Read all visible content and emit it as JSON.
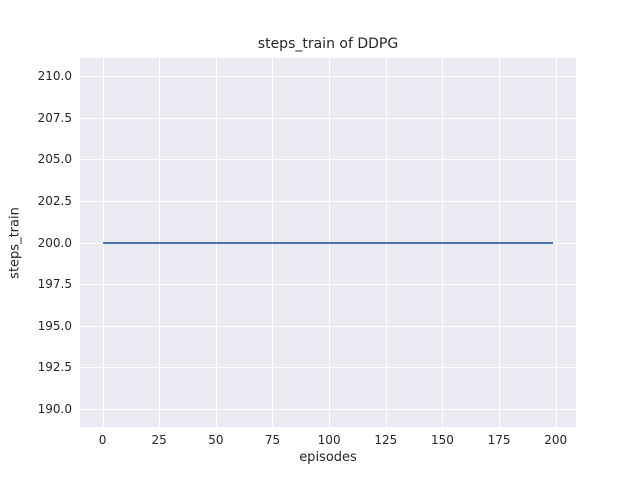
{
  "chart_data": {
    "type": "line",
    "title": "steps_train of DDPG",
    "xlabel": "episodes",
    "ylabel": "steps_train",
    "x_ticks": [
      0,
      25,
      50,
      75,
      100,
      125,
      150,
      175,
      200
    ],
    "x_tick_labels": [
      "0",
      "25",
      "50",
      "75",
      "100",
      "125",
      "150",
      "175",
      "200"
    ],
    "y_ticks": [
      190.0,
      192.5,
      195.0,
      197.5,
      200.0,
      202.5,
      205.0,
      207.5,
      210.0
    ],
    "y_tick_labels": [
      "190.0",
      "192.5",
      "195.0",
      "197.5",
      "200.0",
      "202.5",
      "205.0",
      "207.5",
      "210.0"
    ],
    "xlim": [
      -9.95,
      208.95
    ],
    "ylim": [
      188.9,
      211.1
    ],
    "grid": true,
    "legend": false,
    "series": [
      {
        "name": "steps_train",
        "x": [
          0,
          199
        ],
        "values": [
          200,
          200
        ],
        "description": "constant value 200 for every episode from 0 to 199",
        "color": "#4c72b0"
      }
    ],
    "colors": {
      "figure_background": "#ffffff",
      "plot_background": "#eaeaf2",
      "gridline": "#ffffff",
      "text": "#262626",
      "line": "#4c72b0"
    }
  }
}
